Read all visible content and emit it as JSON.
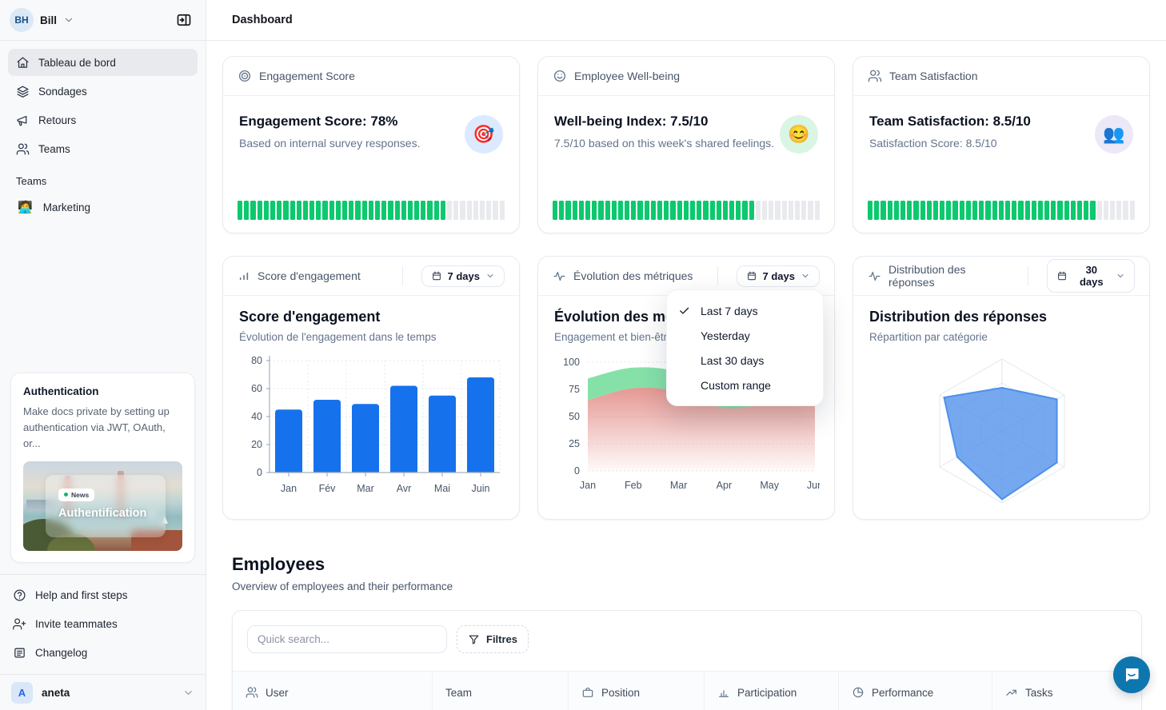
{
  "app": {
    "page_title": "Dashboard"
  },
  "colors": {
    "progress_green": "#0cc96e",
    "progress_rest": "#e8eaed",
    "bar_blue": "#1672ec",
    "radar_blue": "#4e8fea",
    "area_green": "#8be2ab",
    "area_red": "#e0837c",
    "fab_blue": "#0e76ae"
  },
  "sidebar": {
    "user_initials": "BH",
    "user_name": "Bill",
    "items": [
      {
        "label": "Tableau de bord",
        "icon": "home"
      },
      {
        "label": "Sondages",
        "icon": "layers"
      },
      {
        "label": "Retours",
        "icon": "megaphone"
      },
      {
        "label": "Teams",
        "icon": "users"
      }
    ],
    "section_label": "Teams",
    "team_items": [
      {
        "label": "Marketing",
        "emoji": "🧑‍💻"
      }
    ],
    "promo_card": {
      "title": "Authentication",
      "body": "Make docs private by setting up authentication via JWT, OAuth, or...",
      "badge": "News",
      "image_caption": "Authentification"
    },
    "footer_items": [
      {
        "label": "Help and first steps",
        "icon": "help-circle"
      },
      {
        "label": "Invite teammates",
        "icon": "user-plus"
      },
      {
        "label": "Changelog",
        "icon": "newspaper"
      }
    ],
    "workspace_initial": "A",
    "workspace_name": "aneta"
  },
  "stat_cards": [
    {
      "header": "Engagement Score",
      "title": "Engagement Score: 78%",
      "subtitle": "Based on internal survey responses.",
      "emoji": "🎯",
      "badge_bg": "#dbeafe",
      "progress_pct": 78
    },
    {
      "header": "Employee Well-being",
      "title": "Well-being Index: 7.5/10",
      "subtitle": "7.5/10 based on this week's shared feelings.",
      "emoji": "😊",
      "badge_bg": "#d9f5e4",
      "progress_pct": 75
    },
    {
      "header": "Team Satisfaction",
      "title": "Team Satisfaction: 8.5/10",
      "subtitle": "Satisfaction Score: 8.5/10",
      "emoji": "👥",
      "badge_bg": "#ece8f8",
      "progress_pct": 85
    }
  ],
  "chart_cards": [
    {
      "header": "Score d'engagement",
      "range": "7 days",
      "title": "Score d'engagement",
      "subtitle": "Évolution de l'engagement dans le temps"
    },
    {
      "header": "Évolution des métriques",
      "range": "7 days",
      "title": "Évolution des métriques",
      "subtitle": "Engagement et bien-être"
    },
    {
      "header": "Distribution des réponses",
      "range": "30 days",
      "title": "Distribution des réponses",
      "subtitle": "Répartition par catégorie"
    }
  ],
  "dropdown_menu": {
    "items": [
      {
        "label": "Last 7 days",
        "selected": true
      },
      {
        "label": "Yesterday",
        "selected": false
      },
      {
        "label": "Last 30 days",
        "selected": false
      },
      {
        "label": "Custom range",
        "selected": false
      }
    ]
  },
  "employees": {
    "title": "Employees",
    "subtitle": "Overview of employees and their performance",
    "search_placeholder": "Quick search...",
    "filters_label": "Filtres",
    "columns": [
      {
        "label": "User",
        "icon": "users"
      },
      {
        "label": "Team",
        "icon": "none"
      },
      {
        "label": "Position",
        "icon": "briefcase"
      },
      {
        "label": "Participation",
        "icon": "bar-chart"
      },
      {
        "label": "Performance",
        "icon": "pie-chart"
      },
      {
        "label": "Tasks",
        "icon": "trending-up"
      }
    ]
  },
  "chart_data": [
    {
      "type": "bar",
      "title": "Score d'engagement",
      "categories": [
        "Jan",
        "Fév",
        "Mar",
        "Avr",
        "Mai",
        "Juin"
      ],
      "values": [
        45,
        52,
        49,
        62,
        55,
        68
      ],
      "ylim": [
        0,
        80
      ],
      "yticks": [
        0,
        20,
        40,
        60,
        80
      ],
      "color": "#1672ec",
      "grid": true,
      "legend": false
    },
    {
      "type": "area",
      "title": "Évolution des métriques",
      "x": [
        "Jan",
        "Feb",
        "Mar",
        "Apr",
        "May",
        "Jun"
      ],
      "series": [
        {
          "name": "Engagement",
          "values": [
            85,
            95,
            90,
            62,
            68,
            88
          ],
          "color": "#7fdfa4"
        },
        {
          "name": "Bien-être",
          "values": [
            65,
            76,
            73,
            58,
            63,
            74
          ],
          "color": "#df7f78"
        }
      ],
      "ylim": [
        0,
        100
      ],
      "yticks": [
        0,
        25,
        50,
        75,
        100
      ],
      "grid": true,
      "legend": false
    },
    {
      "type": "radar",
      "title": "Distribution des réponses",
      "axes_count": 6,
      "values": [
        60,
        88,
        88,
        95,
        72,
        93
      ],
      "max": 100,
      "color": "#4e8fea",
      "rings": 3
    }
  ]
}
